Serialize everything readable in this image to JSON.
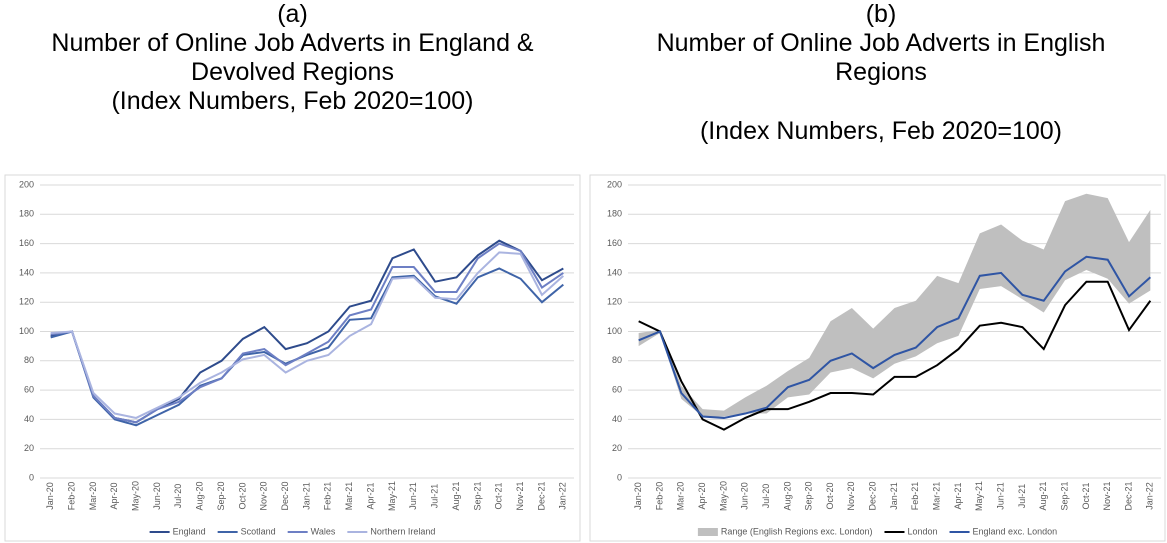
{
  "chart_data": [
    {
      "type": "line",
      "label": "(a)",
      "title": "Number of Online Job Adverts in England & Devolved Regions",
      "subtitle": "(Index Numbers, Feb 2020=100)",
      "categories": [
        "Jan-20",
        "Feb-20",
        "Mar-20",
        "Apr-20",
        "May-20",
        "Jun-20",
        "Jul-20",
        "Aug-20",
        "Sep-20",
        "Oct-20",
        "Nov-20",
        "Dec-20",
        "Jan-21",
        "Feb-21",
        "Mar-21",
        "Apr-21",
        "May-21",
        "Jun-21",
        "Jul-21",
        "Aug-21",
        "Sep-21",
        "Oct-21",
        "Nov-21",
        "Dec-21",
        "Jan-22"
      ],
      "ylim": [
        0,
        200
      ],
      "yticks": [
        0,
        20,
        40,
        60,
        80,
        100,
        120,
        140,
        160,
        180,
        200
      ],
      "grid": true,
      "legend": "bottom",
      "series": [
        {
          "name": "England",
          "color": "#2e4b8c",
          "values": [
            97,
            100,
            56,
            41,
            38,
            47,
            54,
            72,
            80,
            95,
            103,
            88,
            92,
            100,
            117,
            121,
            150,
            156,
            134,
            137,
            152,
            162,
            155,
            135,
            143
          ]
        },
        {
          "name": "Scotland",
          "color": "#3f64a8",
          "values": [
            96,
            100,
            55,
            40,
            36,
            43,
            50,
            63,
            68,
            84,
            86,
            78,
            84,
            89,
            108,
            109,
            137,
            138,
            124,
            119,
            137,
            143,
            136,
            120,
            132
          ]
        },
        {
          "name": "Wales",
          "color": "#6d7fc4",
          "values": [
            98,
            100,
            56,
            41,
            38,
            47,
            52,
            62,
            68,
            85,
            88,
            77,
            85,
            93,
            111,
            115,
            144,
            144,
            127,
            127,
            150,
            160,
            155,
            130,
            140
          ]
        },
        {
          "name": "Northern Ireland",
          "color": "#aab4e0",
          "values": [
            99,
            100,
            58,
            44,
            41,
            48,
            55,
            65,
            72,
            81,
            84,
            72,
            80,
            84,
            97,
            105,
            136,
            137,
            123,
            122,
            140,
            154,
            153,
            125,
            138
          ]
        }
      ]
    },
    {
      "type": "line",
      "label": "(b)",
      "title": "Number of Online Job Adverts in English Regions",
      "subtitle": "(Index Numbers, Feb 2020=100)",
      "categories": [
        "Jan-20",
        "Feb-20",
        "Mar-20",
        "Apr-20",
        "May-20",
        "Jun-20",
        "Jul-20",
        "Aug-20",
        "Sep-20",
        "Oct-20",
        "Nov-20",
        "Dec-20",
        "Jan-21",
        "Feb-21",
        "Mar-21",
        "Apr-21",
        "May-21",
        "Jun-21",
        "Jul-21",
        "Aug-21",
        "Sep-21",
        "Oct-21",
        "Nov-21",
        "Dec-21",
        "Jan-22"
      ],
      "ylim": [
        0,
        200
      ],
      "yticks": [
        0,
        20,
        40,
        60,
        80,
        100,
        120,
        140,
        160,
        180,
        200
      ],
      "grid": true,
      "legend": "bottom",
      "series": [
        {
          "name": "Range (English Regions exc. London)",
          "color": "#bfbfbf",
          "type": "range",
          "upper": [
            99,
            101,
            63,
            47,
            46,
            55,
            63,
            73,
            82,
            107,
            116,
            102,
            116,
            121,
            138,
            133,
            167,
            173,
            162,
            156,
            189,
            194,
            191,
            161,
            183
          ],
          "lower": [
            90,
            99,
            54,
            42,
            42,
            44,
            44,
            55,
            57,
            72,
            75,
            68,
            78,
            83,
            92,
            97,
            129,
            131,
            122,
            113,
            135,
            142,
            136,
            119,
            128
          ]
        },
        {
          "name": "London",
          "color": "#000000",
          "values": [
            107,
            100,
            66,
            40,
            33,
            41,
            47,
            47,
            52,
            58,
            58,
            57,
            69,
            69,
            77,
            88,
            104,
            106,
            103,
            88,
            118,
            134,
            134,
            101,
            121
          ]
        },
        {
          "name": "England exc. London",
          "color": "#2f55a4",
          "values": [
            94,
            100,
            58,
            42,
            41,
            44,
            48,
            62,
            67,
            80,
            85,
            75,
            84,
            89,
            103,
            109,
            138,
            140,
            125,
            121,
            141,
            151,
            149,
            124,
            137
          ]
        }
      ]
    }
  ]
}
